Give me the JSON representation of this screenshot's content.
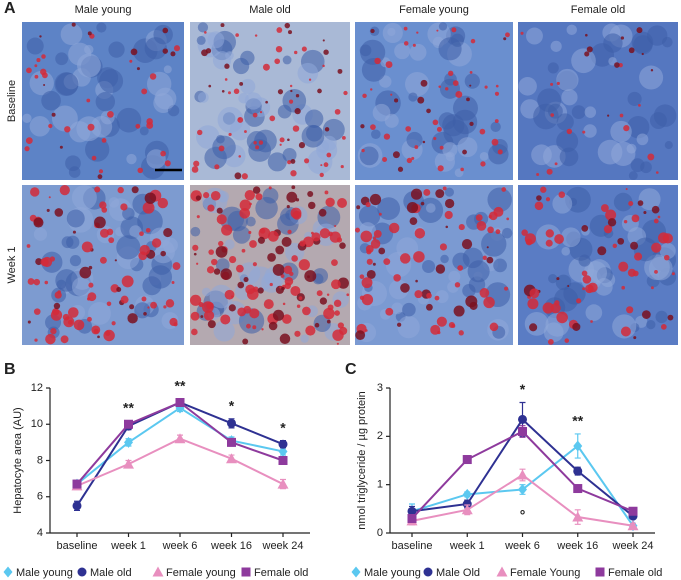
{
  "figure": {
    "label": "A",
    "columns": [
      "Male young",
      "Male old",
      "Female young",
      "Female old"
    ],
    "rows": [
      "Baseline",
      "Week 1"
    ]
  },
  "chart_data": [
    {
      "type": "line",
      "panel_label": "B",
      "y_label": "Hepatocyte area (AU)",
      "categories": [
        "baseline",
        "week 1",
        "week 6",
        "week 16",
        "week 24"
      ],
      "ylim": [
        4,
        12
      ],
      "yticks": [
        4,
        6,
        8,
        10,
        12
      ],
      "significance": [
        null,
        "**",
        "**",
        "*",
        "*"
      ],
      "series": [
        {
          "name": "Male young",
          "color": "#5bc8f0",
          "marker": "diamond",
          "values": [
            6.7,
            9.0,
            10.9,
            9.1,
            8.5
          ],
          "errors": [
            0.2,
            0.2,
            0.2,
            0.2,
            0.2
          ]
        },
        {
          "name": "Male old",
          "color": "#2e3192",
          "marker": "circle",
          "values": [
            5.5,
            9.9,
            11.2,
            10.05,
            8.9
          ],
          "errors": [
            0.25,
            0.2,
            0.2,
            0.25,
            0.2
          ]
        },
        {
          "name": "Female young",
          "color": "#e88fbf",
          "marker": "triangle",
          "values": [
            6.6,
            7.8,
            9.2,
            8.1,
            6.7
          ],
          "errors": [
            0.2,
            0.2,
            0.2,
            0.2,
            0.25
          ]
        },
        {
          "name": "Female old",
          "color": "#8e3a9d",
          "marker": "square",
          "values": [
            6.7,
            10.0,
            11.2,
            9.0,
            8.0
          ],
          "errors": [
            0.2,
            0.2,
            0.15,
            0.2,
            0.2
          ]
        }
      ]
    },
    {
      "type": "line",
      "panel_label": "C",
      "y_label": "nmol triglyceride / µg protein",
      "categories": [
        "baseline",
        "week 1",
        "week 6",
        "week 16",
        "week 24"
      ],
      "ylim": [
        0,
        3
      ],
      "yticks": [
        0,
        1,
        2,
        3
      ],
      "significance": [
        null,
        null,
        "*",
        "**",
        null
      ],
      "significance_below": [
        null,
        null,
        "°",
        null,
        null
      ],
      "series": [
        {
          "name": "Male young",
          "color": "#5bc8f0",
          "marker": "diamond",
          "values": [
            0.45,
            0.8,
            0.9,
            1.8,
            0.15
          ],
          "errors": [
            0.15,
            0.05,
            0.1,
            0.25,
            0.05
          ]
        },
        {
          "name": "Male Old",
          "color": "#2e3192",
          "marker": "circle",
          "values": [
            0.45,
            0.6,
            2.35,
            1.28,
            0.35
          ],
          "errors": [
            0.1,
            0.08,
            0.35,
            0.08,
            0.05
          ]
        },
        {
          "name": "Female Young",
          "color": "#e88fbf",
          "marker": "triangle",
          "values": [
            0.25,
            0.48,
            1.2,
            0.33,
            0.15
          ],
          "errors": [
            0.08,
            0.1,
            0.12,
            0.15,
            0.05
          ]
        },
        {
          "name": "Female old",
          "color": "#8e3a9d",
          "marker": "square",
          "values": [
            0.3,
            1.52,
            2.1,
            0.92,
            0.45
          ],
          "errors": [
            0.05,
            0.08,
            0.12,
            0.05,
            0.05
          ]
        }
      ]
    }
  ]
}
